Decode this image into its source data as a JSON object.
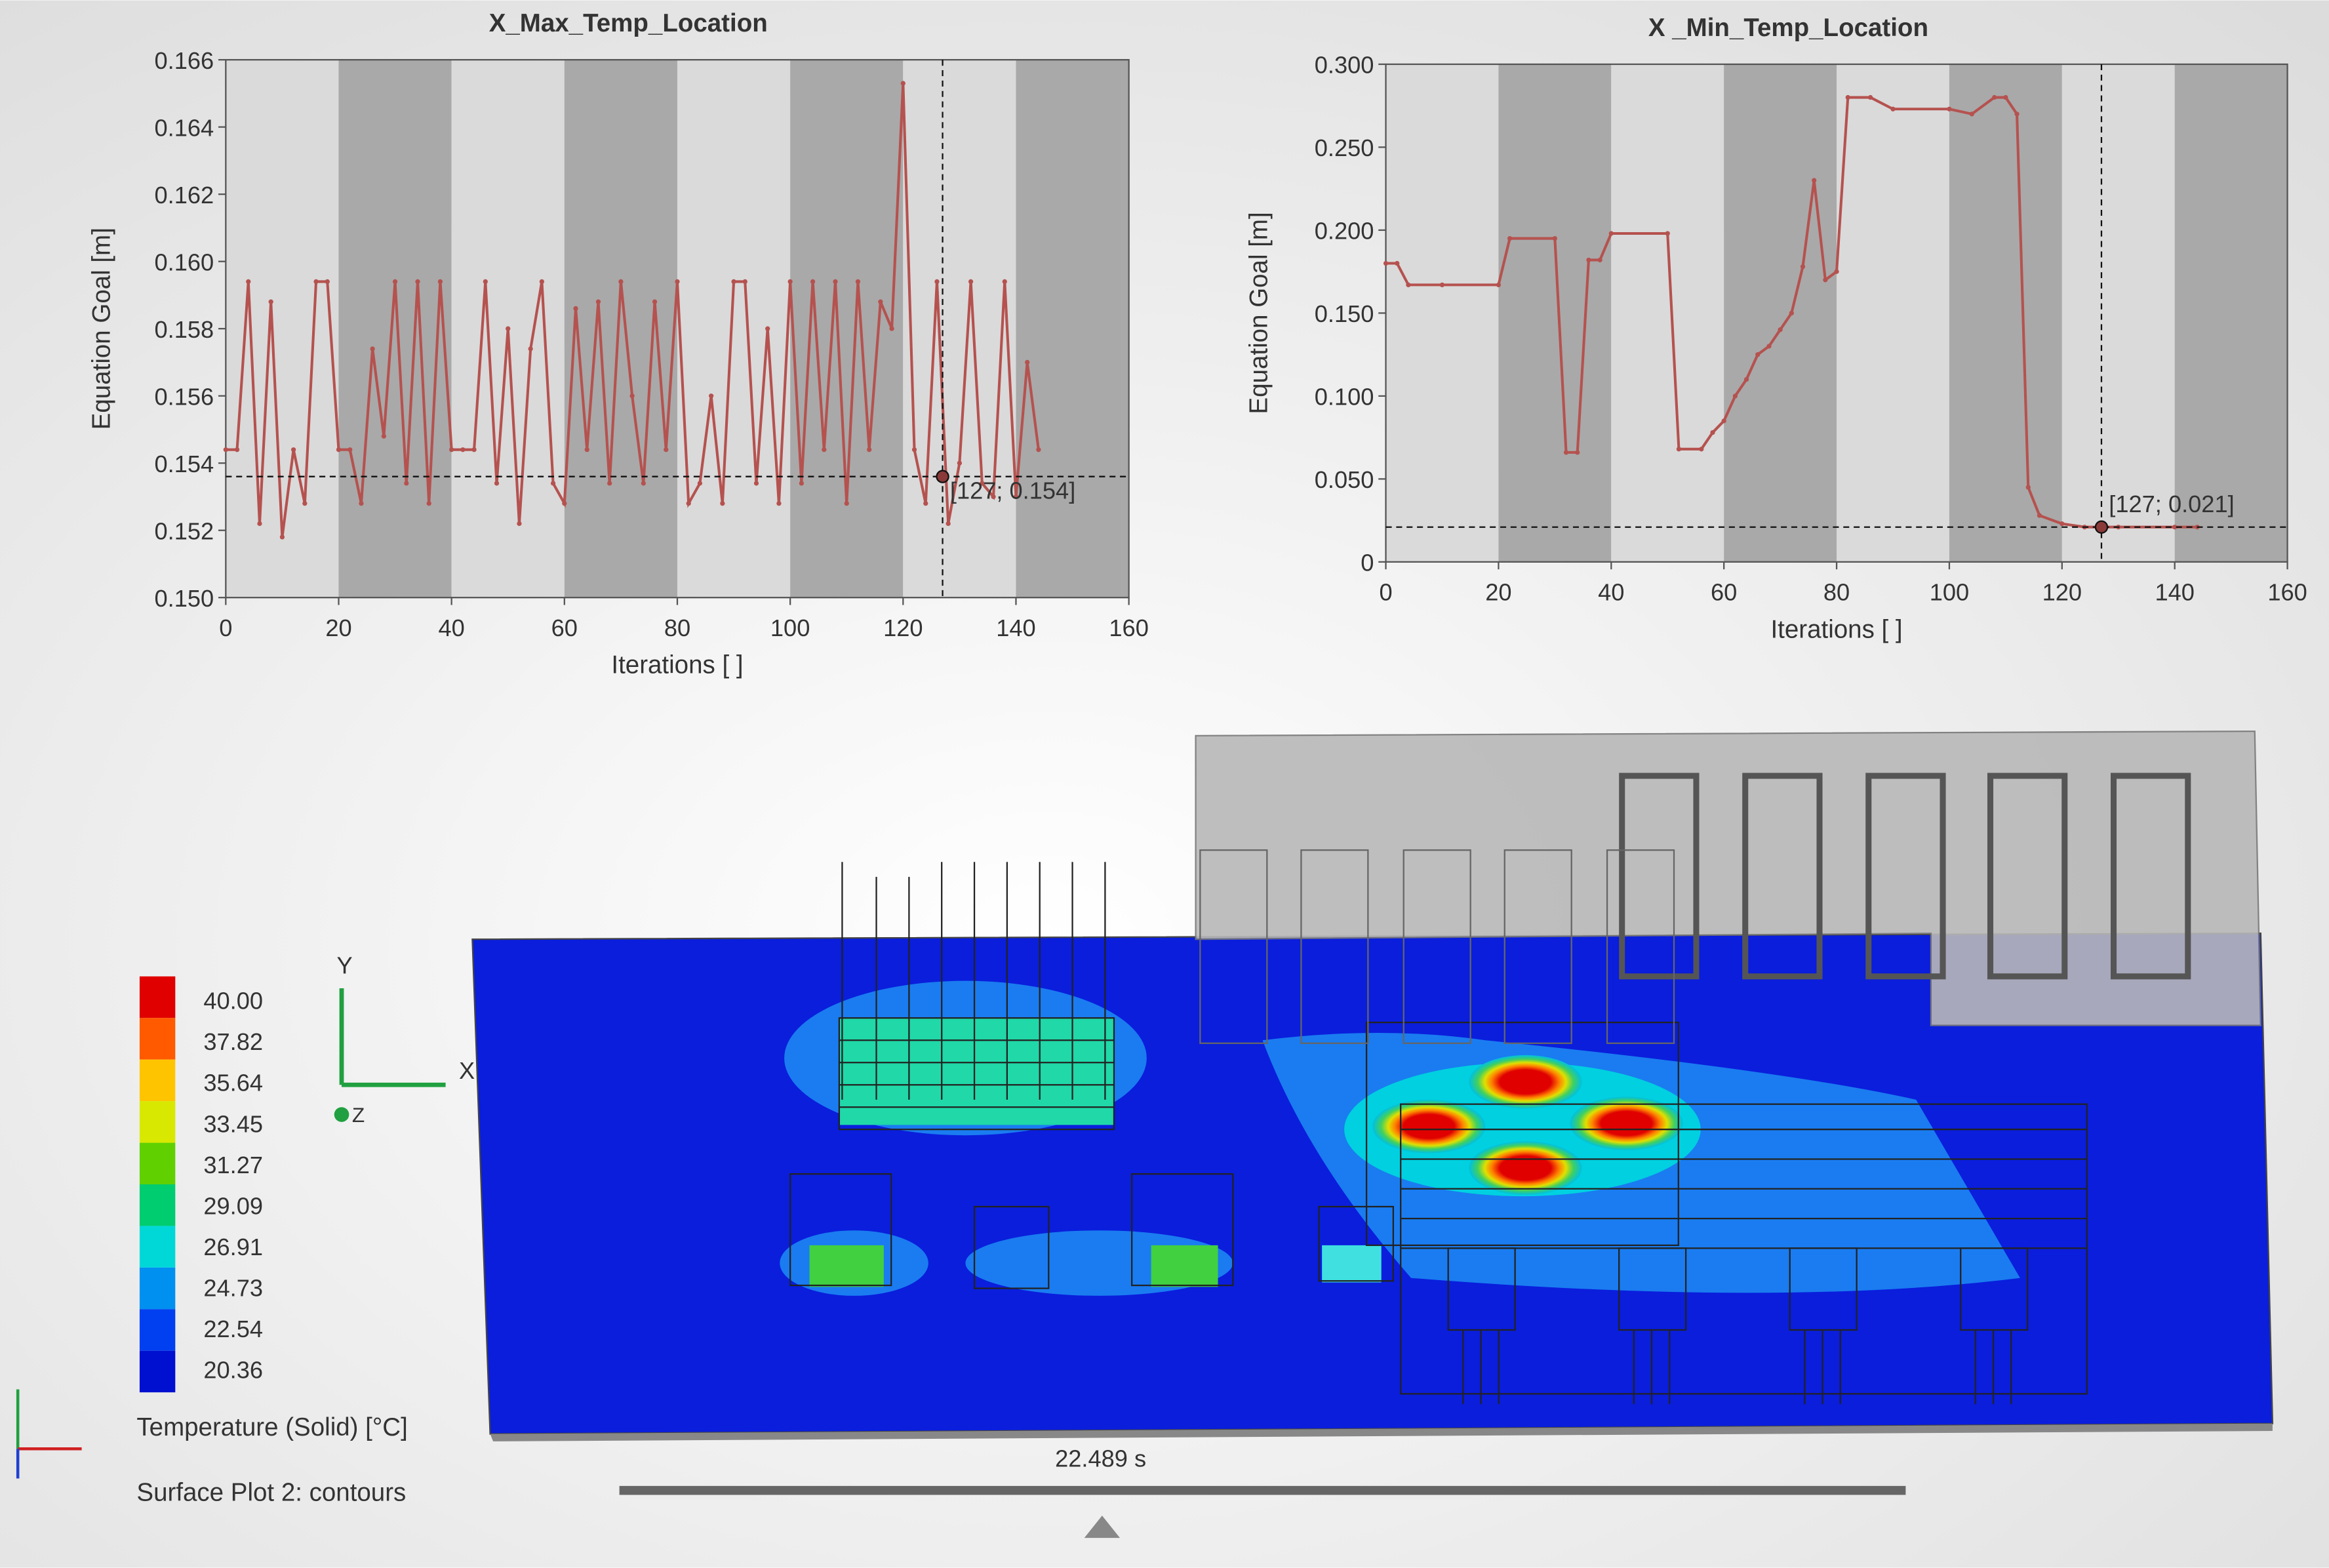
{
  "chart_data": [
    {
      "type": "line",
      "title": "X_Max_Temp_Location",
      "xlabel": "Iterations [ ]",
      "ylabel": "Equation Goal [m]",
      "color": "#b5524f",
      "x": [
        0,
        2,
        4,
        6,
        8,
        10,
        12,
        14,
        16,
        18,
        20,
        22,
        24,
        26,
        28,
        30,
        32,
        34,
        36,
        38,
        40,
        42,
        44,
        46,
        48,
        50,
        52,
        54,
        56,
        58,
        60,
        62,
        64,
        66,
        68,
        70,
        72,
        74,
        76,
        78,
        80,
        82,
        84,
        86,
        88,
        90,
        92,
        94,
        96,
        98,
        100,
        102,
        104,
        106,
        108,
        110,
        112,
        114,
        116,
        118,
        120,
        122,
        124,
        126,
        128,
        130,
        132,
        134,
        136,
        138,
        140,
        142,
        144
      ],
      "values": [
        0.1544,
        0.1544,
        0.1594,
        0.1522,
        0.1588,
        0.1518,
        0.1544,
        0.1528,
        0.1594,
        0.1594,
        0.1544,
        0.1544,
        0.1528,
        0.1574,
        0.1548,
        0.1594,
        0.1534,
        0.1594,
        0.1528,
        0.1594,
        0.1544,
        0.1544,
        0.1544,
        0.1594,
        0.1534,
        0.158,
        0.1522,
        0.1574,
        0.1594,
        0.1534,
        0.1528,
        0.1586,
        0.1544,
        0.1588,
        0.1534,
        0.1594,
        0.156,
        0.1534,
        0.1588,
        0.1544,
        0.1594,
        0.1528,
        0.1534,
        0.156,
        0.1528,
        0.1594,
        0.1594,
        0.1534,
        0.158,
        0.1528,
        0.1594,
        0.1534,
        0.1594,
        0.1544,
        0.1594,
        0.1528,
        0.1594,
        0.1544,
        0.1588,
        0.158,
        0.1653,
        0.1544,
        0.1528,
        0.1594,
        0.1522,
        0.154,
        0.1594,
        0.1534,
        0.153,
        0.1594,
        0.153,
        0.157,
        0.1544
      ],
      "xlim": [
        0,
        160
      ],
      "xticks": [
        0,
        20,
        40,
        60,
        80,
        100,
        120,
        140,
        160
      ],
      "ylim": [
        0.15,
        0.166
      ],
      "yticks": [
        {
          "value": 0.15,
          "label": "0.150"
        },
        {
          "value": 0.152,
          "label": "0.152"
        },
        {
          "value": 0.154,
          "label": "0.154"
        },
        {
          "value": 0.156,
          "label": "0.156"
        },
        {
          "value": 0.158,
          "label": "0.158"
        },
        {
          "value": 0.16,
          "label": "0.160"
        },
        {
          "value": 0.162,
          "label": "0.162"
        },
        {
          "value": 0.164,
          "label": "0.164"
        },
        {
          "value": 0.166,
          "label": "0.166"
        }
      ],
      "crosshair": {
        "x": 127,
        "y": 0.1536,
        "label": "[127; 0.154]"
      }
    },
    {
      "type": "line",
      "title": "X _Min_Temp_Location",
      "xlabel": "Iterations [ ]",
      "ylabel": "Equation Goal [m]",
      "color": "#b5524f",
      "x": [
        0,
        2,
        4,
        10,
        20,
        22,
        30,
        32,
        34,
        36,
        38,
        40,
        50,
        52,
        56,
        58,
        60,
        62,
        64,
        66,
        68,
        70,
        72,
        74,
        76,
        78,
        80,
        82,
        86,
        90,
        100,
        104,
        108,
        110,
        112,
        114,
        116,
        120,
        124,
        127,
        130,
        140,
        144
      ],
      "values": [
        0.18,
        0.18,
        0.167,
        0.167,
        0.167,
        0.195,
        0.195,
        0.066,
        0.066,
        0.182,
        0.182,
        0.198,
        0.198,
        0.068,
        0.068,
        0.078,
        0.085,
        0.1,
        0.11,
        0.125,
        0.13,
        0.14,
        0.15,
        0.178,
        0.23,
        0.17,
        0.175,
        0.28,
        0.28,
        0.273,
        0.273,
        0.27,
        0.28,
        0.28,
        0.27,
        0.045,
        0.028,
        0.023,
        0.021,
        0.021,
        0.021,
        0.021,
        0.021
      ],
      "xlim": [
        0,
        160
      ],
      "xticks": [
        0,
        20,
        40,
        60,
        80,
        100,
        120,
        140,
        160
      ],
      "ylim": [
        0,
        0.3
      ],
      "yticks": [
        0,
        {
          "value": 0.05,
          "label": "0.050"
        },
        {
          "value": 0.1,
          "label": "0.100"
        },
        {
          "value": 0.15,
          "label": "0.150"
        },
        {
          "value": 0.2,
          "label": "0.200"
        },
        {
          "value": 0.25,
          "label": "0.250"
        },
        {
          "value": 0.3,
          "label": "0.300"
        }
      ],
      "crosshair": {
        "x": 127,
        "y": 0.021,
        "label": "[127; 0.021]"
      }
    }
  ],
  "viewport": {
    "legend": {
      "labels": [
        "40.00",
        "37.82",
        "35.64",
        "33.45",
        "31.27",
        "29.09",
        "26.91",
        "24.73",
        "22.54",
        "20.36"
      ],
      "colors": [
        "#e00000",
        "#ff5a00",
        "#ffc400",
        "#d8e800",
        "#60d000",
        "#00cc70",
        "#00d8d8",
        "#0090f0",
        "#0040f0",
        "#0010d0"
      ],
      "title": "Temperature (Solid) [°C]"
    },
    "caption": "Surface Plot 2: contours",
    "time": "22.489 s",
    "axes": [
      "X",
      "Y",
      "Z"
    ]
  }
}
